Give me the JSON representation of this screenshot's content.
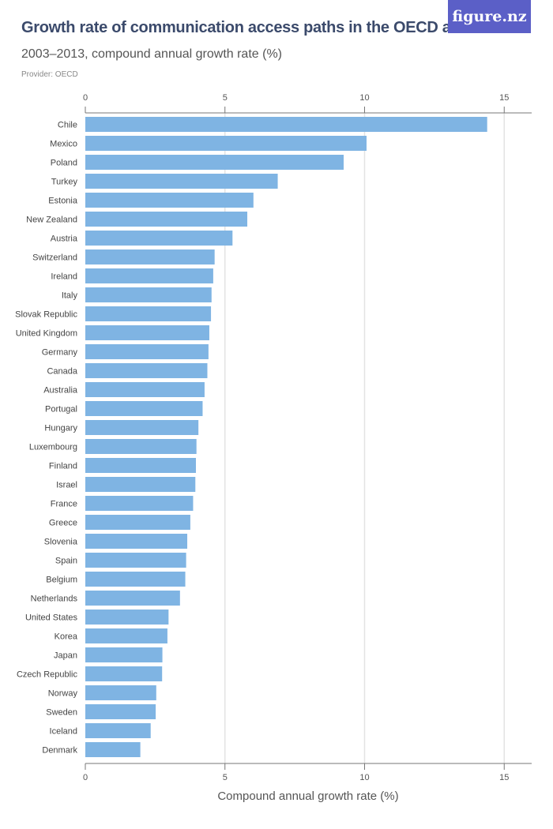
{
  "header": {
    "title": "Growth rate of communication access paths in the OECD area",
    "subtitle": "2003–2013, compound annual growth rate (%)",
    "provider": "Provider: OECD",
    "logo": "figure.nz"
  },
  "chart_data": {
    "type": "bar",
    "orientation": "horizontal",
    "title": "Growth rate of communication access paths in the OECD area",
    "subtitle": "2003–2013, compound annual growth rate (%)",
    "xlabel": "Compound annual growth rate (%)",
    "ylabel": "",
    "xlim": [
      0,
      16
    ],
    "ticks": [
      0,
      5,
      10,
      15
    ],
    "grid": true,
    "bar_color": "#7fb4e3",
    "categories": [
      "Chile",
      "Mexico",
      "Poland",
      "Turkey",
      "Estonia",
      "New Zealand",
      "Austria",
      "Switzerland",
      "Ireland",
      "Italy",
      "Slovak Republic",
      "United Kingdom",
      "Germany",
      "Canada",
      "Australia",
      "Portugal",
      "Hungary",
      "Luxembourg",
      "Finland",
      "Israel",
      "France",
      "Greece",
      "Slovenia",
      "Spain",
      "Belgium",
      "Netherlands",
      "United States",
      "Korea",
      "Japan",
      "Czech Republic",
      "Norway",
      "Sweden",
      "Iceland",
      "Denmark"
    ],
    "values": [
      14.39,
      10.07,
      9.25,
      6.89,
      6.02,
      5.8,
      5.27,
      4.63,
      4.58,
      4.52,
      4.5,
      4.44,
      4.41,
      4.37,
      4.27,
      4.2,
      4.05,
      3.98,
      3.96,
      3.94,
      3.86,
      3.76,
      3.65,
      3.61,
      3.58,
      3.39,
      2.98,
      2.94,
      2.76,
      2.75,
      2.54,
      2.52,
      2.34,
      1.97
    ]
  }
}
